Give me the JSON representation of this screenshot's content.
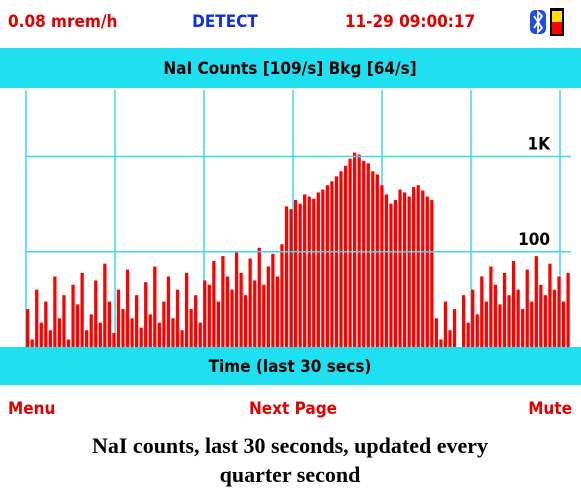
{
  "status": {
    "dose_rate": "0.08 mrem/h",
    "mode": "DETECT",
    "datetime": "11-29 09:00:17"
  },
  "menu": {
    "left": "Menu",
    "center": "Next Page",
    "right": "Mute"
  },
  "caption": [
    "NaI counts, last 30 seconds, updated every",
    "quarter second"
  ],
  "chart_data": {
    "type": "bar",
    "title": "NaI Counts [109/s]  Bkg [64/s]",
    "x_label": "Time (last 30 secs)",
    "color": "#ff0000",
    "log_scale": true,
    "grid": true,
    "ylim": [
      10,
      5000
    ],
    "yticks": [
      {
        "value": 1000,
        "label": "1K"
      },
      100
    ],
    "values": [
      25,
      12,
      40,
      18,
      30,
      15,
      55,
      20,
      35,
      12,
      45,
      28,
      60,
      15,
      22,
      50,
      18,
      75,
      30,
      14,
      40,
      25,
      65,
      20,
      35,
      16,
      48,
      22,
      70,
      18,
      30,
      55,
      20,
      40,
      15,
      60,
      25,
      35,
      18,
      50,
      45,
      80,
      30,
      90,
      55,
      40,
      100,
      60,
      35,
      85,
      50,
      110,
      45,
      70,
      95,
      55,
      120,
      300,
      280,
      350,
      320,
      400,
      380,
      360,
      420,
      450,
      500,
      550,
      620,
      700,
      800,
      950,
      1100,
      1050,
      900,
      850,
      700,
      650,
      500,
      400,
      320,
      350,
      450,
      420,
      380,
      480,
      500,
      440,
      380,
      350,
      20,
      12,
      30,
      15,
      25,
      10,
      35,
      18,
      40,
      22,
      55,
      30,
      70,
      45,
      28,
      60,
      35,
      80,
      40,
      25,
      65,
      30,
      90,
      45,
      35,
      75,
      40,
      55,
      30,
      60
    ]
  }
}
